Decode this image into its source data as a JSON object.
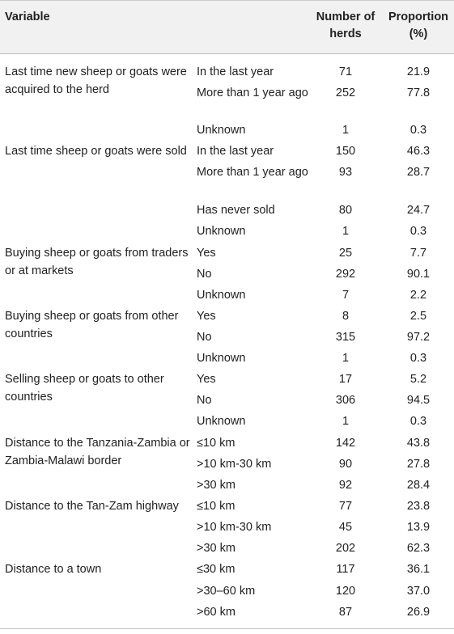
{
  "header": {
    "variable": "Variable",
    "number": "Number of herds",
    "proportion": "Proportion (%)"
  },
  "groups": [
    {
      "variable": "Last time new sheep or goats were acquired to the herd",
      "rows": [
        {
          "category": "In the last year",
          "number": "71",
          "proportion": "21.9"
        },
        {
          "category": "More than 1 year ago",
          "number": "252",
          "proportion": "77.8"
        },
        {
          "category": "Unknown",
          "number": "1",
          "proportion": "0.3"
        }
      ]
    },
    {
      "variable": "Last time sheep or goats were sold",
      "rows": [
        {
          "category": "In the last year",
          "number": "150",
          "proportion": "46.3"
        },
        {
          "category": "More than 1 year ago",
          "number": "93",
          "proportion": "28.7"
        },
        {
          "category": "Has never sold",
          "number": "80",
          "proportion": "24.7"
        },
        {
          "category": "Unknown",
          "number": "1",
          "proportion": "0.3"
        }
      ]
    },
    {
      "variable": "Buying sheep or goats from traders or at markets",
      "rows": [
        {
          "category": "Yes",
          "number": "25",
          "proportion": "7.7"
        },
        {
          "category": "No",
          "number": "292",
          "proportion": "90.1"
        },
        {
          "category": "Unknown",
          "number": "7",
          "proportion": "2.2"
        }
      ]
    },
    {
      "variable": "Buying sheep or goats from other countries",
      "rows": [
        {
          "category": "Yes",
          "number": "8",
          "proportion": "2.5"
        },
        {
          "category": "No",
          "number": "315",
          "proportion": "97.2"
        },
        {
          "category": "Unknown",
          "number": "1",
          "proportion": "0.3"
        }
      ]
    },
    {
      "variable": "Selling sheep or goats to other countries",
      "rows": [
        {
          "category": "Yes",
          "number": "17",
          "proportion": "5.2"
        },
        {
          "category": "No",
          "number": "306",
          "proportion": "94.5"
        },
        {
          "category": "Unknown",
          "number": "1",
          "proportion": "0.3"
        }
      ]
    },
    {
      "variable": "Distance to the Tanzania-Zambia or Zambia-Malawi border",
      "rows": [
        {
          "category": "≤10 km",
          "number": "142",
          "proportion": "43.8"
        },
        {
          "category": ">10 km-30 km",
          "number": "90",
          "proportion": "27.8"
        },
        {
          "category": ">30 km",
          "number": "92",
          "proportion": "28.4"
        }
      ]
    },
    {
      "variable": "Distance to the Tan-Zam highway",
      "rows": [
        {
          "category": "≤10 km",
          "number": "77",
          "proportion": "23.8"
        },
        {
          "category": ">10 km-30 km",
          "number": "45",
          "proportion": "13.9"
        },
        {
          "category": ">30 km",
          "number": "202",
          "proportion": "62.3"
        }
      ]
    },
    {
      "variable": "Distance to a town",
      "rows": [
        {
          "category": "≤30 km",
          "number": "117",
          "proportion": "36.1"
        },
        {
          "category": ">30–60 km",
          "number": "120",
          "proportion": "37.0"
        },
        {
          "category": ">60 km",
          "number": "87",
          "proportion": "26.9"
        }
      ]
    }
  ]
}
